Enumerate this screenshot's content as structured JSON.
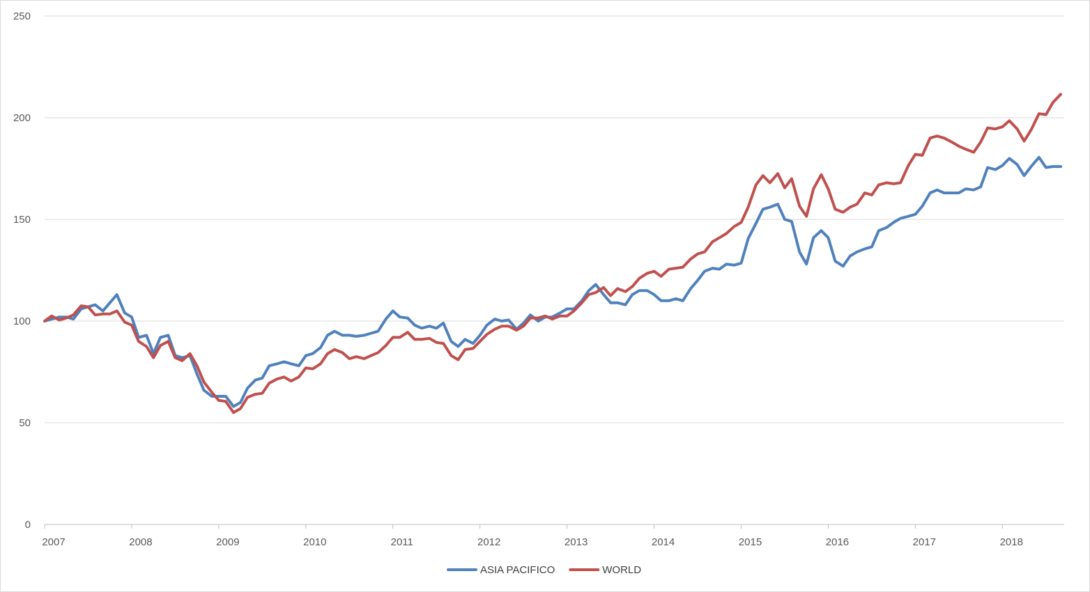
{
  "chart_data": {
    "type": "line",
    "title": "",
    "xlabel": "",
    "ylabel": "",
    "ylim": [
      0,
      250
    ],
    "y_ticks": [
      0,
      50,
      100,
      150,
      200,
      250
    ],
    "xlim": [
      2007.0,
      2018.67
    ],
    "x_ticks": [
      "2007",
      "2008",
      "2009",
      "2010",
      "2011",
      "2012",
      "2013",
      "2014",
      "2015",
      "2016",
      "2017",
      "2018"
    ],
    "grid": "horizontal",
    "legend": "bottom-center",
    "series": [
      {
        "name": "ASIA PACIFICO",
        "color": "#4f81bd",
        "points": [
          [
            2007.0,
            100
          ],
          [
            2007.17,
            102
          ],
          [
            2007.25,
            102
          ],
          [
            2007.33,
            101
          ],
          [
            2007.42,
            106
          ],
          [
            2007.5,
            107
          ],
          [
            2007.58,
            108
          ],
          [
            2007.67,
            105
          ],
          [
            2007.75,
            109
          ],
          [
            2007.83,
            113
          ],
          [
            2007.92,
            104
          ],
          [
            2008.0,
            102
          ],
          [
            2008.08,
            92
          ],
          [
            2008.17,
            93
          ],
          [
            2008.25,
            84
          ],
          [
            2008.33,
            92
          ],
          [
            2008.42,
            93
          ],
          [
            2008.5,
            83
          ],
          [
            2008.58,
            82
          ],
          [
            2008.67,
            83
          ],
          [
            2008.75,
            74
          ],
          [
            2008.83,
            66
          ],
          [
            2008.92,
            63
          ],
          [
            2009.0,
            63
          ],
          [
            2009.08,
            63
          ],
          [
            2009.17,
            58
          ],
          [
            2009.25,
            60
          ],
          [
            2009.33,
            67
          ],
          [
            2009.42,
            71
          ],
          [
            2009.5,
            72
          ],
          [
            2009.58,
            78
          ],
          [
            2009.67,
            79
          ],
          [
            2009.75,
            80
          ],
          [
            2009.83,
            79
          ],
          [
            2009.92,
            78
          ],
          [
            2010.0,
            83
          ],
          [
            2010.08,
            84
          ],
          [
            2010.17,
            87
          ],
          [
            2010.25,
            93
          ],
          [
            2010.33,
            95
          ],
          [
            2010.42,
            93
          ],
          [
            2010.5,
            93
          ],
          [
            2010.58,
            92.5
          ],
          [
            2010.67,
            93
          ],
          [
            2010.75,
            94
          ],
          [
            2010.83,
            95
          ],
          [
            2010.92,
            101
          ],
          [
            2011.0,
            105
          ],
          [
            2011.08,
            102
          ],
          [
            2011.17,
            101.5
          ],
          [
            2011.25,
            98
          ],
          [
            2011.33,
            96.5
          ],
          [
            2011.42,
            97.5
          ],
          [
            2011.5,
            96.5
          ],
          [
            2011.58,
            99
          ],
          [
            2011.67,
            90
          ],
          [
            2011.75,
            87.5
          ],
          [
            2011.83,
            91
          ],
          [
            2011.92,
            89
          ],
          [
            2012.0,
            93
          ],
          [
            2012.08,
            98
          ],
          [
            2012.17,
            101
          ],
          [
            2012.25,
            100
          ],
          [
            2012.33,
            100.5
          ],
          [
            2012.42,
            96
          ],
          [
            2012.5,
            99
          ],
          [
            2012.58,
            103
          ],
          [
            2012.67,
            100
          ],
          [
            2012.75,
            102
          ],
          [
            2012.83,
            102
          ],
          [
            2012.92,
            104
          ],
          [
            2013.0,
            106
          ],
          [
            2013.08,
            106
          ],
          [
            2013.17,
            110
          ],
          [
            2013.25,
            115
          ],
          [
            2013.33,
            118
          ],
          [
            2013.42,
            113
          ],
          [
            2013.5,
            109
          ],
          [
            2013.58,
            109
          ],
          [
            2013.67,
            108
          ],
          [
            2013.75,
            113
          ],
          [
            2013.83,
            115
          ],
          [
            2013.92,
            115
          ],
          [
            2014.0,
            113
          ],
          [
            2014.08,
            110
          ],
          [
            2014.17,
            110
          ],
          [
            2014.25,
            111
          ],
          [
            2014.33,
            110
          ],
          [
            2014.42,
            116
          ],
          [
            2014.5,
            120
          ],
          [
            2014.58,
            124.5
          ],
          [
            2014.67,
            126
          ],
          [
            2014.75,
            125.5
          ],
          [
            2014.83,
            128
          ],
          [
            2014.92,
            127.5
          ],
          [
            2015.0,
            128.5
          ],
          [
            2015.08,
            140.5
          ],
          [
            2015.17,
            148
          ],
          [
            2015.25,
            155
          ],
          [
            2015.33,
            156
          ],
          [
            2015.42,
            157.5
          ],
          [
            2015.5,
            150
          ],
          [
            2015.58,
            149
          ],
          [
            2015.67,
            134
          ],
          [
            2015.75,
            128
          ],
          [
            2015.83,
            141
          ],
          [
            2015.92,
            144.5
          ],
          [
            2016.0,
            141
          ],
          [
            2016.08,
            129.5
          ],
          [
            2016.17,
            127
          ],
          [
            2016.25,
            132
          ],
          [
            2016.33,
            134
          ],
          [
            2016.42,
            135.5
          ],
          [
            2016.5,
            136.5
          ],
          [
            2016.58,
            144.5
          ],
          [
            2016.67,
            146
          ],
          [
            2016.75,
            148.5
          ],
          [
            2016.83,
            150.5
          ],
          [
            2016.92,
            151.5
          ],
          [
            2017.0,
            152.5
          ],
          [
            2017.08,
            156.5
          ],
          [
            2017.17,
            163
          ],
          [
            2017.25,
            164.5
          ],
          [
            2017.33,
            163
          ],
          [
            2017.42,
            163
          ],
          [
            2017.5,
            163
          ],
          [
            2017.58,
            165
          ],
          [
            2017.67,
            164.5
          ],
          [
            2017.75,
            166
          ],
          [
            2017.83,
            175.5
          ],
          [
            2017.92,
            174.5
          ],
          [
            2018.0,
            176.5
          ],
          [
            2018.08,
            180
          ],
          [
            2018.17,
            177
          ],
          [
            2018.25,
            171.5
          ],
          [
            2018.33,
            176
          ],
          [
            2018.42,
            180.5
          ],
          [
            2018.5,
            175.5
          ],
          [
            2018.58,
            176
          ],
          [
            2018.67,
            176
          ]
        ]
      },
      {
        "name": "WORLD",
        "color": "#c0504d",
        "points": [
          [
            2007.0,
            100
          ],
          [
            2007.08,
            102.5
          ],
          [
            2007.17,
            100.5
          ],
          [
            2007.25,
            101.5
          ],
          [
            2007.33,
            103
          ],
          [
            2007.42,
            107.5
          ],
          [
            2007.5,
            107
          ],
          [
            2007.58,
            103
          ],
          [
            2007.67,
            103.5
          ],
          [
            2007.75,
            103.5
          ],
          [
            2007.83,
            105
          ],
          [
            2007.92,
            99.5
          ],
          [
            2008.0,
            98
          ],
          [
            2008.08,
            90
          ],
          [
            2008.17,
            87.5
          ],
          [
            2008.25,
            82
          ],
          [
            2008.33,
            88
          ],
          [
            2008.42,
            90
          ],
          [
            2008.5,
            82
          ],
          [
            2008.58,
            80.5
          ],
          [
            2008.67,
            84
          ],
          [
            2008.75,
            78
          ],
          [
            2008.83,
            70
          ],
          [
            2008.92,
            65
          ],
          [
            2009.0,
            61
          ],
          [
            2009.08,
            60.5
          ],
          [
            2009.17,
            55
          ],
          [
            2009.25,
            57
          ],
          [
            2009.33,
            62.5
          ],
          [
            2009.42,
            64
          ],
          [
            2009.5,
            64.5
          ],
          [
            2009.58,
            69.5
          ],
          [
            2009.67,
            71.5
          ],
          [
            2009.75,
            72.5
          ],
          [
            2009.83,
            70.5
          ],
          [
            2009.92,
            72.5
          ],
          [
            2010.0,
            77
          ],
          [
            2010.08,
            76.5
          ],
          [
            2010.17,
            79
          ],
          [
            2010.25,
            84
          ],
          [
            2010.33,
            86
          ],
          [
            2010.42,
            84.5
          ],
          [
            2010.5,
            81.5
          ],
          [
            2010.58,
            82.5
          ],
          [
            2010.67,
            81.5
          ],
          [
            2010.75,
            83
          ],
          [
            2010.83,
            84.5
          ],
          [
            2010.92,
            88
          ],
          [
            2011.0,
            92
          ],
          [
            2011.08,
            92
          ],
          [
            2011.17,
            94.5
          ],
          [
            2011.25,
            91
          ],
          [
            2011.33,
            91
          ],
          [
            2011.42,
            91.5
          ],
          [
            2011.5,
            89.5
          ],
          [
            2011.58,
            89
          ],
          [
            2011.67,
            83
          ],
          [
            2011.75,
            81
          ],
          [
            2011.83,
            86
          ],
          [
            2011.92,
            86.5
          ],
          [
            2012.0,
            90
          ],
          [
            2012.08,
            93.5
          ],
          [
            2012.17,
            96
          ],
          [
            2012.25,
            97.5
          ],
          [
            2012.33,
            97.5
          ],
          [
            2012.42,
            95.5
          ],
          [
            2012.5,
            97.5
          ],
          [
            2012.58,
            101.5
          ],
          [
            2012.67,
            101.5
          ],
          [
            2012.75,
            102.5
          ],
          [
            2012.83,
            101
          ],
          [
            2012.92,
            102.5
          ],
          [
            2013.0,
            102.5
          ],
          [
            2013.08,
            105
          ],
          [
            2013.17,
            109
          ],
          [
            2013.25,
            113
          ],
          [
            2013.33,
            114
          ],
          [
            2013.42,
            116.5
          ],
          [
            2013.5,
            112.5
          ],
          [
            2013.58,
            116
          ],
          [
            2013.67,
            114.5
          ],
          [
            2013.75,
            117
          ],
          [
            2013.83,
            121
          ],
          [
            2013.92,
            123.5
          ],
          [
            2014.0,
            124.5
          ],
          [
            2014.08,
            122
          ],
          [
            2014.17,
            125.5
          ],
          [
            2014.25,
            126
          ],
          [
            2014.33,
            126.5
          ],
          [
            2014.42,
            130.5
          ],
          [
            2014.5,
            133
          ],
          [
            2014.58,
            134
          ],
          [
            2014.67,
            139
          ],
          [
            2014.75,
            141
          ],
          [
            2014.83,
            143
          ],
          [
            2014.92,
            146.5
          ],
          [
            2015.0,
            148.5
          ],
          [
            2015.08,
            156
          ],
          [
            2015.17,
            167
          ],
          [
            2015.25,
            171.5
          ],
          [
            2015.33,
            168
          ],
          [
            2015.42,
            172.5
          ],
          [
            2015.5,
            165.5
          ],
          [
            2015.58,
            170
          ],
          [
            2015.67,
            156.5
          ],
          [
            2015.75,
            151.5
          ],
          [
            2015.83,
            165
          ],
          [
            2015.92,
            172
          ],
          [
            2016.0,
            165
          ],
          [
            2016.08,
            155
          ],
          [
            2016.17,
            153.5
          ],
          [
            2016.25,
            156
          ],
          [
            2016.33,
            157.5
          ],
          [
            2016.42,
            163
          ],
          [
            2016.5,
            162
          ],
          [
            2016.58,
            167
          ],
          [
            2016.67,
            168
          ],
          [
            2016.75,
            167.5
          ],
          [
            2016.83,
            168
          ],
          [
            2016.92,
            176.5
          ],
          [
            2017.0,
            182
          ],
          [
            2017.08,
            181.5
          ],
          [
            2017.17,
            190
          ],
          [
            2017.25,
            191
          ],
          [
            2017.33,
            190
          ],
          [
            2017.42,
            188
          ],
          [
            2017.5,
            186
          ],
          [
            2017.58,
            184.5
          ],
          [
            2017.67,
            183
          ],
          [
            2017.75,
            188
          ],
          [
            2017.83,
            195
          ],
          [
            2017.92,
            194.5
          ],
          [
            2018.0,
            195.5
          ],
          [
            2018.08,
            198.5
          ],
          [
            2018.17,
            194.5
          ],
          [
            2018.25,
            188.5
          ],
          [
            2018.33,
            194
          ],
          [
            2018.42,
            202
          ],
          [
            2018.5,
            201.5
          ],
          [
            2018.58,
            207.5
          ],
          [
            2018.67,
            211.5
          ]
        ]
      }
    ]
  }
}
